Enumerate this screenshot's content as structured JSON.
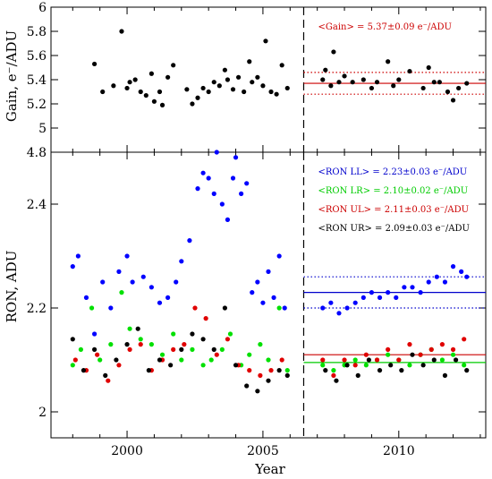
{
  "chart_data": [
    {
      "type": "scatter",
      "panel": "top",
      "ylabel": "Gain, e⁻/ADU",
      "xlim": [
        1997.2,
        2013.2
      ],
      "ylim": [
        4.8,
        6.0
      ],
      "yticks": [
        "4.8",
        "5",
        "5.2",
        "5.4",
        "5.6",
        "5.8",
        "6"
      ],
      "divider_x": 2006.5,
      "annotations": [
        {
          "text": "<Gain> = 5.37±0.09 e⁻/ADU",
          "color": "#cc0000"
        }
      ],
      "reference_lines": [
        {
          "y": 5.37,
          "style": "solid",
          "color": "#cc0000",
          "from": 2006.5
        },
        {
          "y": 5.46,
          "style": "dotted",
          "color": "#cc0000",
          "from": 2006.5
        },
        {
          "y": 5.28,
          "style": "dotted",
          "color": "#cc0000",
          "from": 2006.5
        }
      ],
      "series": [
        {
          "color": "#000000",
          "x": [
            1998.8,
            1999.1,
            1999.5,
            1999.8,
            2000.0,
            2000.1,
            2000.3,
            2000.5,
            2000.7,
            2000.9,
            2001.0,
            2001.2,
            2001.3,
            2001.5,
            2001.7,
            2002.2,
            2002.4,
            2002.6,
            2002.8,
            2003.0,
            2003.2,
            2003.4,
            2003.6,
            2003.7,
            2003.9,
            2004.1,
            2004.3,
            2004.5,
            2004.6,
            2004.8,
            2005.0,
            2005.1,
            2005.3,
            2005.5,
            2005.7,
            2005.9,
            2007.2,
            2007.3,
            2007.5,
            2007.6,
            2007.8,
            2008.0,
            2008.3,
            2008.7,
            2009.0,
            2009.2,
            2009.6,
            2009.8,
            2010.0,
            2010.4,
            2010.9,
            2011.1,
            2011.3,
            2011.5,
            2011.8,
            2012.0,
            2012.2,
            2012.5
          ],
          "y": [
            5.53,
            5.3,
            5.35,
            5.8,
            5.33,
            5.38,
            5.4,
            5.3,
            5.27,
            5.45,
            5.22,
            5.3,
            5.19,
            5.42,
            5.52,
            5.32,
            5.2,
            5.25,
            5.33,
            5.3,
            5.38,
            5.35,
            5.48,
            5.4,
            5.32,
            5.42,
            5.3,
            5.55,
            5.38,
            5.42,
            5.35,
            5.72,
            5.3,
            5.28,
            5.52,
            5.33,
            5.4,
            5.48,
            5.35,
            5.63,
            5.38,
            5.43,
            5.38,
            5.4,
            5.33,
            5.38,
            5.55,
            5.35,
            5.4,
            5.47,
            5.33,
            5.5,
            5.38,
            5.38,
            5.3,
            5.23,
            5.33,
            5.37
          ]
        }
      ]
    },
    {
      "type": "scatter",
      "panel": "bottom",
      "xlabel": "Year",
      "ylabel": "RON, ADU",
      "xlim": [
        1997.2,
        2013.2
      ],
      "ylim": [
        1.95,
        2.5
      ],
      "yticks": [
        "2",
        "2.2",
        "2.4"
      ],
      "xticks": [
        "2000",
        "2005",
        "2010"
      ],
      "divider_x": 2006.5,
      "annotations": [
        {
          "text": "<RON LL> = 2.23±0.03 e⁻/ADU",
          "color": "#0000cc"
        },
        {
          "text": "<RON LR> = 2.10±0.02 e⁻/ADU",
          "color": "#00cc00"
        },
        {
          "text": "<RON UL> = 2.11±0.03 e⁻/ADU",
          "color": "#cc0000"
        },
        {
          "text": "<RON UR> = 2.09±0.03 e⁻/ADU",
          "color": "#000000"
        }
      ],
      "reference_lines": [
        {
          "y": 2.23,
          "style": "solid",
          "color": "#0000cc",
          "from": 2006.5
        },
        {
          "y": 2.26,
          "style": "dotted",
          "color": "#0000cc",
          "from": 2006.5
        },
        {
          "y": 2.2,
          "style": "dotted",
          "color": "#0000cc",
          "from": 2006.5
        },
        {
          "y": 2.11,
          "style": "solid",
          "color": "#cc0000",
          "from": 2006.5
        },
        {
          "y": 2.095,
          "style": "solid",
          "color": "#00cc00",
          "from": 2006.5
        }
      ],
      "series": [
        {
          "color": "#0000ff",
          "x": [
            1998.0,
            1998.2,
            1998.5,
            1998.8,
            1999.1,
            1999.4,
            1999.7,
            2000.0,
            2000.2,
            2000.6,
            2000.9,
            2001.2,
            2001.5,
            2001.8,
            2002.0,
            2002.3,
            2002.6,
            2002.8,
            2003.0,
            2003.2,
            2003.3,
            2003.5,
            2003.7,
            2003.9,
            2004.0,
            2004.2,
            2004.4,
            2004.6,
            2004.8,
            2005.0,
            2005.2,
            2005.4,
            2005.6,
            2005.8,
            2007.2,
            2007.5,
            2007.8,
            2008.1,
            2008.4,
            2008.7,
            2009.0,
            2009.3,
            2009.6,
            2009.9,
            2010.2,
            2010.5,
            2010.8,
            2011.1,
            2011.4,
            2011.7,
            2012.0,
            2012.3,
            2012.5
          ],
          "y": [
            2.28,
            2.3,
            2.22,
            2.15,
            2.25,
            2.2,
            2.27,
            2.3,
            2.25,
            2.26,
            2.24,
            2.21,
            2.22,
            2.25,
            2.29,
            2.33,
            2.43,
            2.46,
            2.45,
            2.42,
            2.5,
            2.4,
            2.37,
            2.45,
            2.49,
            2.42,
            2.44,
            2.23,
            2.25,
            2.21,
            2.27,
            2.22,
            2.3,
            2.2,
            2.2,
            2.21,
            2.19,
            2.2,
            2.21,
            2.22,
            2.23,
            2.22,
            2.23,
            2.22,
            2.24,
            2.24,
            2.23,
            2.25,
            2.26,
            2.25,
            2.28,
            2.27,
            2.26
          ]
        },
        {
          "color": "#00e000",
          "x": [
            1998.0,
            1998.3,
            1998.7,
            1999.0,
            1999.4,
            1999.8,
            2000.1,
            2000.5,
            2000.9,
            2001.3,
            2001.7,
            2002.0,
            2002.4,
            2002.8,
            2003.1,
            2003.5,
            2003.8,
            2004.2,
            2004.5,
            2004.9,
            2005.2,
            2005.6,
            2005.9,
            2007.2,
            2007.6,
            2008.0,
            2008.4,
            2008.8,
            2009.2,
            2009.6,
            2010.0,
            2010.4,
            2010.8,
            2011.2,
            2011.6,
            2012.0,
            2012.4
          ],
          "y": [
            2.09,
            2.12,
            2.2,
            2.1,
            2.13,
            2.23,
            2.16,
            2.14,
            2.13,
            2.11,
            2.15,
            2.1,
            2.12,
            2.09,
            2.1,
            2.12,
            2.15,
            2.09,
            2.11,
            2.13,
            2.1,
            2.2,
            2.08,
            2.09,
            2.08,
            2.09,
            2.1,
            2.09,
            2.1,
            2.11,
            2.1,
            2.09,
            2.11,
            2.12,
            2.1,
            2.11,
            2.09
          ]
        },
        {
          "color": "#e00000",
          "x": [
            1998.1,
            1998.5,
            1998.9,
            1999.3,
            1999.7,
            2000.1,
            2000.5,
            2000.9,
            2001.3,
            2001.7,
            2002.1,
            2002.5,
            2002.9,
            2003.3,
            2003.7,
            2004.1,
            2004.5,
            2004.9,
            2005.3,
            2005.7,
            2007.2,
            2007.6,
            2008.0,
            2008.4,
            2008.8,
            2009.2,
            2009.6,
            2010.0,
            2010.4,
            2010.8,
            2011.2,
            2011.6,
            2012.0,
            2012.4
          ],
          "y": [
            2.1,
            2.08,
            2.11,
            2.06,
            2.09,
            2.12,
            2.13,
            2.08,
            2.1,
            2.12,
            2.13,
            2.2,
            2.18,
            2.11,
            2.14,
            2.09,
            2.08,
            2.07,
            2.08,
            2.1,
            2.1,
            2.07,
            2.1,
            2.09,
            2.11,
            2.1,
            2.12,
            2.1,
            2.13,
            2.11,
            2.12,
            2.13,
            2.12,
            2.14
          ]
        },
        {
          "color": "#000000",
          "x": [
            1998.0,
            1998.4,
            1998.8,
            1999.2,
            1999.6,
            2000.0,
            2000.4,
            2000.8,
            2001.2,
            2001.6,
            2002.0,
            2002.4,
            2002.8,
            2003.2,
            2003.6,
            2004.0,
            2004.4,
            2004.8,
            2005.2,
            2005.6,
            2005.9,
            2007.3,
            2007.7,
            2008.1,
            2008.5,
            2008.9,
            2009.3,
            2009.7,
            2010.1,
            2010.5,
            2010.9,
            2011.3,
            2011.7,
            2012.1,
            2012.5
          ],
          "y": [
            2.14,
            2.08,
            2.12,
            2.07,
            2.1,
            2.13,
            2.16,
            2.08,
            2.1,
            2.09,
            2.12,
            2.15,
            2.14,
            2.12,
            2.2,
            2.09,
            2.05,
            2.04,
            2.06,
            2.08,
            2.07,
            2.08,
            2.06,
            2.09,
            2.07,
            2.1,
            2.08,
            2.09,
            2.08,
            2.11,
            2.09,
            2.1,
            2.07,
            2.1,
            2.08
          ]
        }
      ]
    }
  ]
}
